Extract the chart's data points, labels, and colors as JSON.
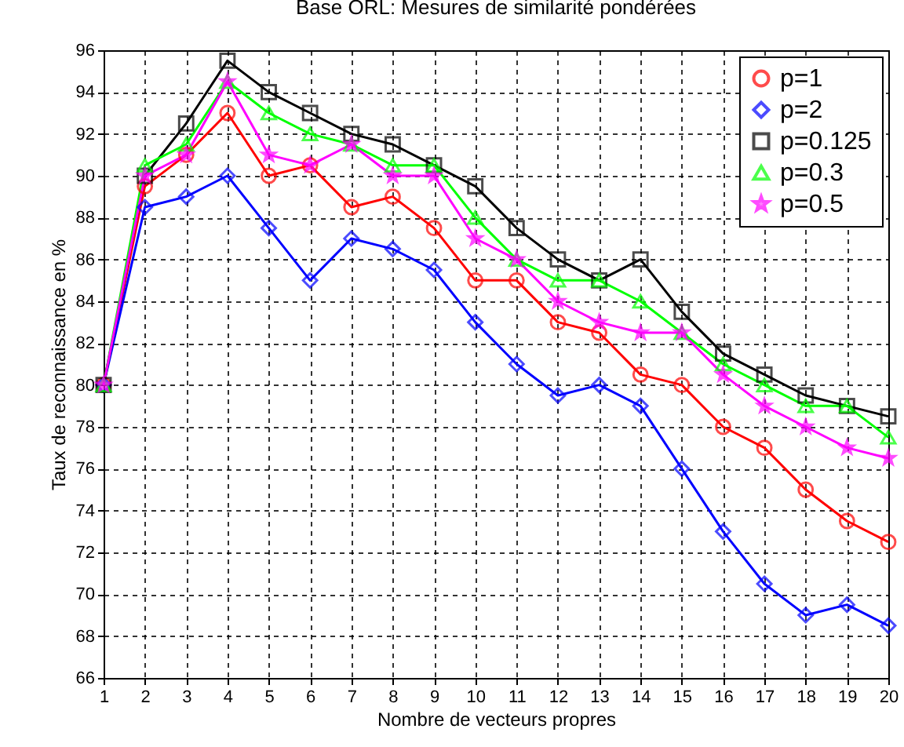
{
  "chart_data": {
    "type": "line",
    "title": "Base ORL: Mesures de similarité pondérées",
    "xlabel": "Nombre de vecteurs propres",
    "ylabel": "Taux de reconnaissance en %",
    "x": [
      1,
      2,
      3,
      4,
      5,
      6,
      7,
      8,
      9,
      10,
      11,
      12,
      13,
      14,
      15,
      16,
      17,
      18,
      19,
      20
    ],
    "xlim": [
      1,
      20
    ],
    "xticks": [
      1,
      2,
      3,
      4,
      5,
      6,
      7,
      8,
      9,
      10,
      11,
      12,
      13,
      14,
      15,
      16,
      17,
      18,
      19,
      20
    ],
    "ylim": [
      66,
      96
    ],
    "yticks": [
      66,
      68,
      70,
      72,
      74,
      76,
      78,
      80,
      82,
      84,
      86,
      88,
      90,
      92,
      94,
      96
    ],
    "grid": true,
    "legend": "top right",
    "line_style": "solid",
    "series": [
      {
        "name": "p=1",
        "color": "#ff0000",
        "marker": "circle",
        "values": [
          80,
          89.5,
          91,
          93,
          90,
          90.5,
          88.5,
          89,
          87.5,
          85,
          85,
          83,
          82.5,
          80.5,
          80,
          78,
          77,
          75,
          73.5,
          72.5
        ]
      },
      {
        "name": "p=2",
        "color": "#0000ff",
        "marker": "diamond",
        "values": [
          80,
          88.5,
          89,
          90,
          87.5,
          85,
          87,
          86.5,
          85.5,
          83,
          81,
          79.5,
          80,
          79,
          76,
          73,
          70.5,
          69,
          69.5,
          68.5
        ]
      },
      {
        "name": "p=0.125",
        "color": "#000000",
        "marker": "square",
        "values": [
          80,
          90,
          92.5,
          95.5,
          94,
          93,
          92,
          91.5,
          90.5,
          89.5,
          87.5,
          86,
          85,
          86,
          83.5,
          81.5,
          80.5,
          79.5,
          79,
          78.5
        ]
      },
      {
        "name": "p=0.3",
        "color": "#00ff00",
        "marker": "triangle",
        "values": [
          80,
          90.5,
          91.5,
          94.5,
          93,
          92,
          91.5,
          90.5,
          90.5,
          88,
          86,
          85,
          85,
          84,
          82.5,
          81,
          80,
          79,
          79,
          77.5
        ]
      },
      {
        "name": "p=0.5",
        "color": "#ff00ff",
        "marker": "star",
        "values": [
          80,
          90,
          91,
          94.5,
          91,
          90.5,
          91.5,
          90,
          90,
          87,
          86,
          84,
          83,
          82.5,
          82.5,
          80.5,
          79,
          78,
          77,
          76.5
        ]
      }
    ]
  }
}
